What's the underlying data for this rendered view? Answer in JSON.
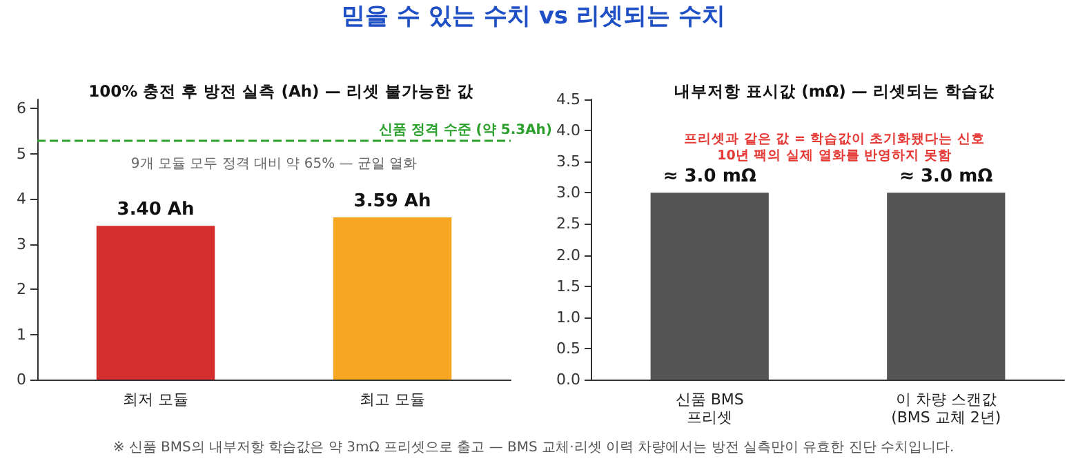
{
  "chart_data": [
    {
      "type": "bar",
      "title": "100% 충전 후 방전 실측 (Ah) — 리셋 불가능한 값",
      "categories": [
        "최저 모듈",
        "최고 모듈"
      ],
      "values": [
        3.4,
        3.59
      ],
      "colors": [
        "#d32f2f",
        "#f5a623"
      ],
      "value_labels": [
        "3.40 Ah",
        "3.59 Ah"
      ],
      "ylim": [
        0,
        6.2
      ],
      "yticks": [
        0,
        1,
        2,
        3,
        4,
        5,
        6
      ],
      "grid": false,
      "ref_lines": [
        {
          "axis": "y",
          "value": 5.3,
          "label": "신품 정격 수준 (약 5.3Ah)",
          "color": "#2ca02c",
          "line_style": "dashed"
        }
      ],
      "annotations": [
        "믿을 수 있는 수치 vs 리셋되는 수치",
        "9개 모듈 모두 정격 대비 약 65% — 균일 열화",
        "※ 신품 BMS의 내부저항 학습값은 약 3mΩ 프리셋으로 출고 — BMS 교체·리셋 이력 차량에서는 방전 실측만이 유효한 진단 수치입니다."
      ]
    },
    {
      "type": "bar",
      "title": "내부저항 표시값 (mΩ) — 리셋되는 학습값",
      "categories": [
        "신품 BMS\n프리셋",
        "이 차량 스캔값\n(BMS 교체 2년)"
      ],
      "values": [
        3.0,
        3.0
      ],
      "colors": [
        "#555555",
        "#555555"
      ],
      "value_labels": [
        "≈ 3.0 mΩ",
        "≈ 3.0 mΩ"
      ],
      "ylim": [
        0,
        4.5
      ],
      "yticks": [
        {
          "value": 0,
          "label": "0.0"
        },
        0.5,
        {
          "value": 1,
          "label": "1.0"
        },
        1.5,
        {
          "value": 2,
          "label": "2.0"
        },
        2.5,
        {
          "value": 3,
          "label": "3.0"
        },
        3.5,
        {
          "value": 4,
          "label": "4.0"
        },
        4.5
      ],
      "grid": false,
      "annotations": [
        "프리셋과 같은 값 = 학습값이 초기화됐다는 신호\n10년 팩의 실제 열화를 반영하지 못함"
      ]
    }
  ]
}
